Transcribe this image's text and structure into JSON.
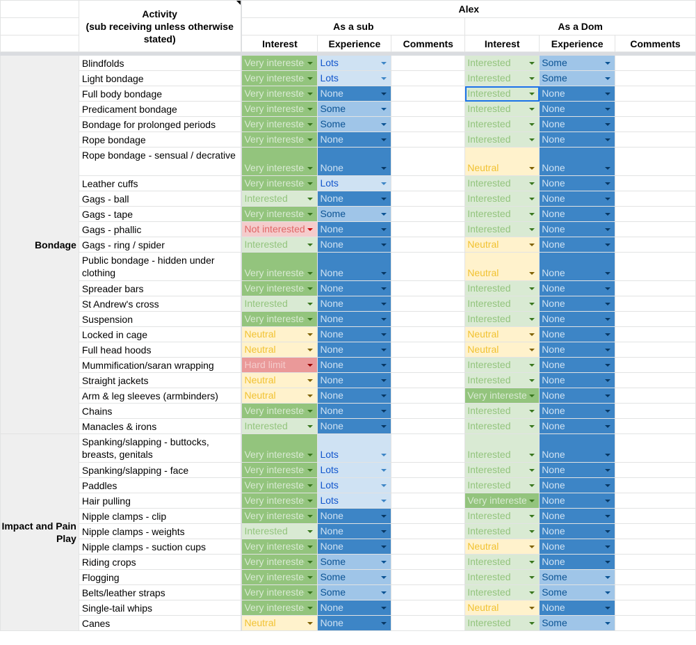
{
  "header": {
    "person": "Alex",
    "activity": "Activity\n(sub receiving unless otherwise stated)",
    "as_sub": "As a sub",
    "as_dom": "As a Dom",
    "interest": "Interest",
    "experience": "Experience",
    "comments": "Comments"
  },
  "colors": {
    "Very interested": {
      "bg": "#93c47d",
      "fg": "#d9ead3",
      "arrow": "#38761d"
    },
    "Interested": {
      "bg": "#d9ead3",
      "fg": "#93c47d",
      "arrow": "#38761d"
    },
    "Neutral": {
      "bg": "#fff2cc",
      "fg": "#f1c232",
      "arrow": "#7f6000"
    },
    "Not interested": {
      "bg": "#f4cccc",
      "fg": "#e06666",
      "arrow": "#cc0000"
    },
    "Hard limit": {
      "bg": "#ea9999",
      "fg": "#f4cccc",
      "arrow": "#990000"
    },
    "Lots": {
      "bg": "#cfe2f3",
      "fg": "#1155cc",
      "arrow": "#3d85c6"
    },
    "Some": {
      "bg": "#9fc5e8",
      "fg": "#0b5394",
      "arrow": "#0b5394"
    },
    "None": {
      "bg": "#3d85c6",
      "fg": "#cfe2f3",
      "arrow": "#073763"
    }
  },
  "sections": [
    {
      "label": "Bondage",
      "rows": [
        [
          "Blindfolds",
          "Very interested",
          "Lots",
          "Interested",
          "Some"
        ],
        [
          "Light bondage",
          "Very interested",
          "Lots",
          "Interested",
          "Some"
        ],
        [
          "Full body bondage",
          "Very interested",
          "None",
          "Interested",
          "None"
        ],
        [
          "Predicament bondage",
          "Very interested",
          "Some",
          "Interested",
          "None"
        ],
        [
          "Bondage for prolonged periods",
          "Very interested",
          "Some",
          "Interested",
          "None"
        ],
        [
          "Rope bondage",
          "Very interested",
          "None",
          "Interested",
          "None"
        ],
        [
          "Rope bondage - sensual / decrative",
          "Very interested",
          "None",
          "Neutral",
          "None"
        ],
        [
          "Leather cuffs",
          "Very interested",
          "Lots",
          "Interested",
          "None"
        ],
        [
          "Gags - ball",
          "Interested",
          "None",
          "Interested",
          "None"
        ],
        [
          "Gags - tape",
          "Very interested",
          "Some",
          "Interested",
          "None"
        ],
        [
          "Gags - phallic",
          "Not interested",
          "None",
          "Interested",
          "None"
        ],
        [
          "Gags - ring / spider",
          "Interested",
          "None",
          "Neutral",
          "None"
        ],
        [
          "Public bondage - hidden under clothing",
          "Very interested",
          "None",
          "Neutral",
          "None"
        ],
        [
          "Spreader bars",
          "Very interested",
          "None",
          "Interested",
          "None"
        ],
        [
          "St Andrew's cross",
          "Interested",
          "None",
          "Interested",
          "None"
        ],
        [
          "Suspension",
          "Very interested",
          "None",
          "Interested",
          "None"
        ],
        [
          "Locked in cage",
          "Neutral",
          "None",
          "Neutral",
          "None"
        ],
        [
          "Full head hoods",
          "Neutral",
          "None",
          "Neutral",
          "None"
        ],
        [
          "Mummification/saran wrapping",
          "Hard limit",
          "None",
          "Interested",
          "None"
        ],
        [
          "Straight jackets",
          "Neutral",
          "None",
          "Interested",
          "None"
        ],
        [
          "Arm & leg sleeves (armbinders)",
          "Neutral",
          "None",
          "Very interested",
          "None"
        ],
        [
          "Chains",
          "Very interested",
          "None",
          "Interested",
          "None"
        ],
        [
          "Manacles & irons",
          "Interested",
          "None",
          "Interested",
          "None"
        ]
      ]
    },
    {
      "label": "Impact and Pain Play",
      "rows": [
        [
          "Spanking/slapping - buttocks, breasts, genitals",
          "Very interested",
          "Lots",
          "Interested",
          "None"
        ],
        [
          "Spanking/slapping - face",
          "Very interested",
          "Lots",
          "Interested",
          "None"
        ],
        [
          "Paddles",
          "Very interested",
          "Lots",
          "Interested",
          "None"
        ],
        [
          "Hair pulling",
          "Very interested",
          "Lots",
          "Very interested",
          "None"
        ],
        [
          "Nipple clamps - clip",
          "Very interested",
          "None",
          "Interested",
          "None"
        ],
        [
          "Nipple clamps - weights",
          "Interested",
          "None",
          "Interested",
          "None"
        ],
        [
          "Nipple clamps - suction cups",
          "Very interested",
          "None",
          "Neutral",
          "None"
        ],
        [
          "Riding crops",
          "Very interested",
          "Some",
          "Interested",
          "None"
        ],
        [
          "Flogging",
          "Very interested",
          "Some",
          "Interested",
          "Some"
        ],
        [
          "Belts/leather straps",
          "Very interested",
          "Some",
          "Interested",
          "Some"
        ],
        [
          "Single-tail whips",
          "Very interested",
          "None",
          "Neutral",
          "None"
        ],
        [
          "Canes",
          "Neutral",
          "None",
          "Interested",
          "Some"
        ]
      ]
    }
  ]
}
